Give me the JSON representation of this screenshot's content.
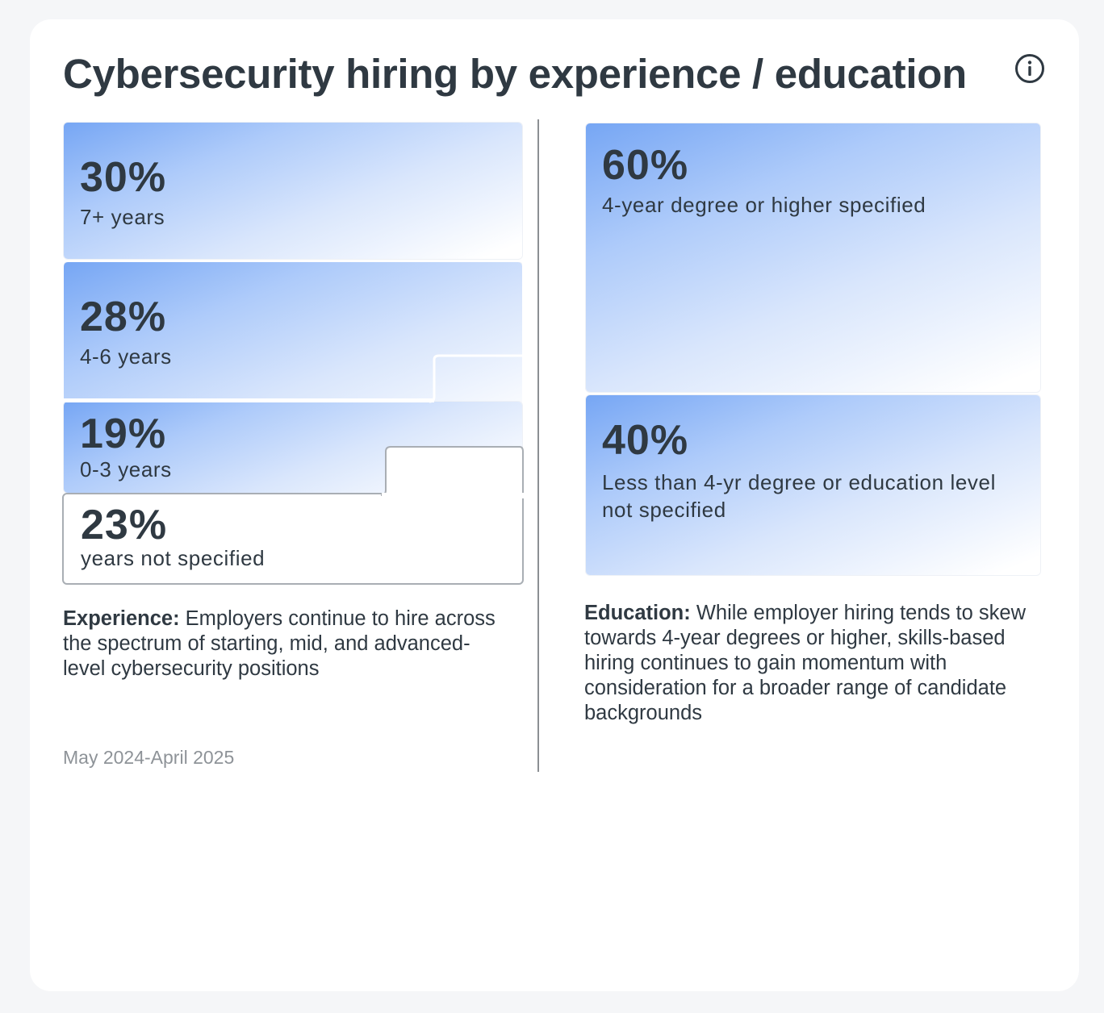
{
  "title": "Cybersecurity hiring by experience / education",
  "info_icon": "info-circle-icon",
  "colors": {
    "tile_gradient_start": "#76a6f4",
    "tile_gradient_end": "#ffffff",
    "text": "#2f3942",
    "muted": "#8e9398",
    "divider": "#8c8f93"
  },
  "chart_data": [
    {
      "type": "table",
      "name": "experience",
      "categories": [
        "7+ years",
        "4-6 years",
        "0-3 years",
        "years not specified"
      ],
      "values": [
        30,
        28,
        19,
        23
      ],
      "value_labels": [
        "30%",
        "28%",
        "19%",
        "23%"
      ]
    },
    {
      "type": "table",
      "name": "education",
      "categories": [
        "4-year degree or higher specified",
        "Less than 4-yr degree or education level not specified"
      ],
      "values": [
        60,
        40
      ],
      "value_labels": [
        "60%",
        "40%"
      ]
    }
  ],
  "experience": {
    "caption_label": "Experience:",
    "caption_text": " Employers continue to hire across the spectrum of starting, mid, and advanced-level cybersecurity positions"
  },
  "education": {
    "caption_label": "Education:",
    "caption_text": " While employer hiring tends to skew towards 4-year degrees or higher, skills-based hiring continues to gain momentum with consideration for a broader range of candidate backgrounds"
  },
  "date_range": "May 2024-April 2025"
}
